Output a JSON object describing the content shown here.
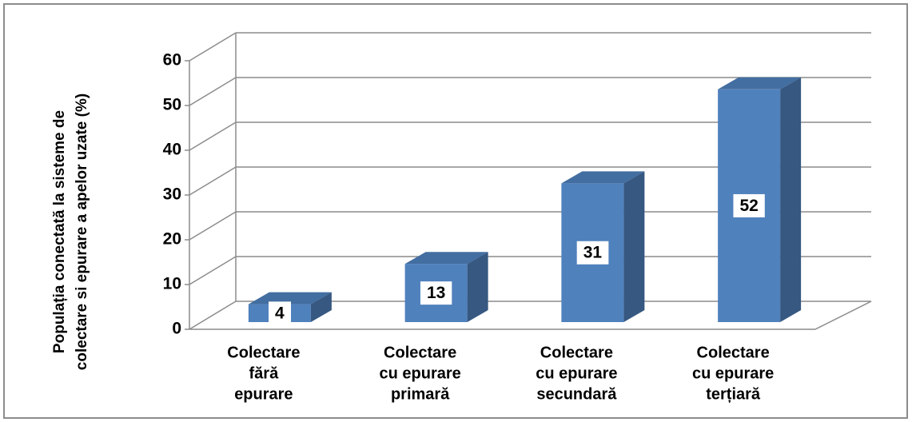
{
  "chart_data": {
    "type": "bar3d",
    "y_label": [
      "Populația conectată la sisteme de",
      "colectare si epurare a apelor uzate (%)"
    ],
    "categories": [
      [
        "Colectare",
        "fără",
        "epurare"
      ],
      [
        "Colectare",
        "cu epurare",
        "primară"
      ],
      [
        "Colectare",
        "cu epurare",
        "secundară"
      ],
      [
        "Colectare",
        "cu epurare",
        "terțiară"
      ]
    ],
    "values": [
      4,
      13,
      31,
      52
    ],
    "color": "#4f81bd",
    "ylim": [
      0,
      60
    ],
    "yticks": [
      0,
      10,
      20,
      30,
      40,
      50,
      60
    ],
    "grid": true
  }
}
